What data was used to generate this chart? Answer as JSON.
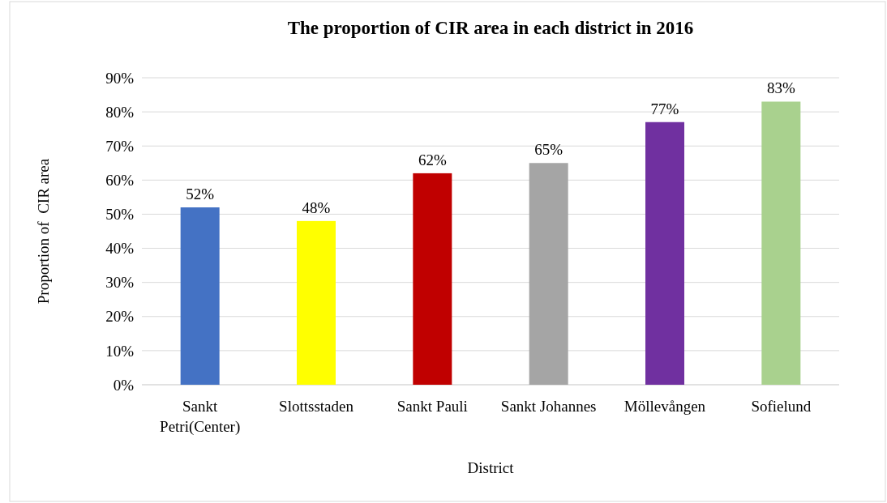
{
  "chart_data": {
    "type": "bar",
    "title": "The proportion of CIR area in each district in 2016",
    "xlabel": "District",
    "ylabel": "Proportion of  CIR area",
    "categories": [
      "Sankt Petri(Center)",
      "Slottsstaden",
      "Sankt Pauli",
      "Sankt Johannes",
      "Möllevången",
      "Sofielund"
    ],
    "values": [
      52,
      48,
      62,
      65,
      77,
      83
    ],
    "colors": [
      "#4472c4",
      "#ffff00",
      "#c00000",
      "#a5a5a5",
      "#7030a0",
      "#a9d18e"
    ],
    "value_labels": [
      "52%",
      "48%",
      "62%",
      "65%",
      "77%",
      "83%"
    ],
    "ylim": [
      0,
      90
    ],
    "yticks": [
      {
        "value": 0,
        "label": "0%"
      },
      {
        "value": 10,
        "label": "10%"
      },
      {
        "value": 20,
        "label": "20%"
      },
      {
        "value": 30,
        "label": "30%"
      },
      {
        "value": 40,
        "label": "40%"
      },
      {
        "value": 50,
        "label": "50%"
      },
      {
        "value": 60,
        "label": "60%"
      },
      {
        "value": 70,
        "label": "70%"
      },
      {
        "value": 80,
        "label": "80%"
      },
      {
        "value": 90,
        "label": "90%"
      }
    ],
    "grid": "y"
  }
}
